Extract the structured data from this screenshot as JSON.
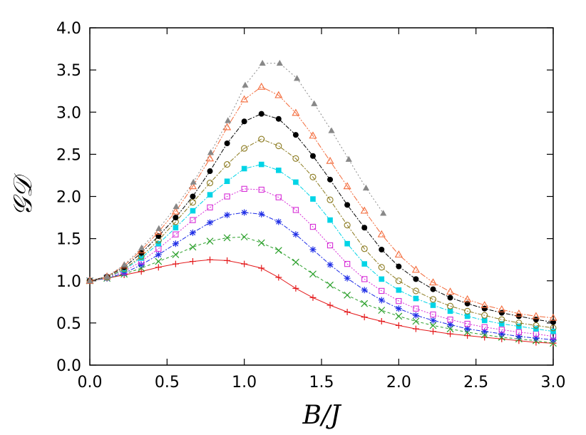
{
  "chart_data": {
    "type": "line",
    "xlabel": "B/J",
    "ylabel": "𝒢𝒟",
    "xlim": [
      0,
      3
    ],
    "ylim": [
      0,
      4
    ],
    "xticks": [
      "0.0",
      "0.5",
      "1.0",
      "1.5",
      "2.0",
      "2.5",
      "3.0"
    ],
    "yticks": [
      "0.0",
      "0.5",
      "1.0",
      "1.5",
      "2.0",
      "2.5",
      "3.0",
      "3.5",
      "4.0"
    ],
    "grid": false,
    "legend": "none",
    "series": [
      {
        "color": "#e41a1c",
        "marker": "plus",
        "dash": "none",
        "x_end": 3.0,
        "values": [
          1.0,
          1.03,
          1.07,
          1.11,
          1.16,
          1.2,
          1.23,
          1.25,
          1.24,
          1.2,
          1.15,
          1.04,
          0.91,
          0.8,
          0.71,
          0.63,
          0.57,
          0.52,
          0.47,
          0.43,
          0.4,
          0.37,
          0.35,
          0.33,
          0.31,
          0.29,
          0.27,
          0.26
        ]
      },
      {
        "color": "#2ca02c",
        "marker": "x",
        "dash": "4 3",
        "x_end": 3.0,
        "values": [
          1.0,
          1.03,
          1.08,
          1.15,
          1.23,
          1.31,
          1.4,
          1.47,
          1.51,
          1.52,
          1.45,
          1.36,
          1.22,
          1.08,
          0.95,
          0.83,
          0.73,
          0.65,
          0.58,
          0.52,
          0.47,
          0.43,
          0.39,
          0.36,
          0.33,
          0.31,
          0.29,
          0.26
        ]
      },
      {
        "color": "#1f2ee6",
        "marker": "star",
        "dash": "6 2 2 2",
        "x_end": 3.0,
        "values": [
          1.0,
          1.03,
          1.09,
          1.19,
          1.31,
          1.44,
          1.57,
          1.69,
          1.78,
          1.81,
          1.79,
          1.7,
          1.55,
          1.37,
          1.19,
          1.03,
          0.89,
          0.77,
          0.67,
          0.59,
          0.53,
          0.48,
          0.43,
          0.4,
          0.37,
          0.34,
          0.32,
          0.3
        ]
      },
      {
        "color": "#d72fd7",
        "marker": "square-open",
        "dash": "2 2",
        "x_end": 3.0,
        "values": [
          1.0,
          1.04,
          1.11,
          1.23,
          1.38,
          1.55,
          1.72,
          1.87,
          2.0,
          2.09,
          2.08,
          1.99,
          1.84,
          1.64,
          1.42,
          1.2,
          1.02,
          0.88,
          0.76,
          0.67,
          0.6,
          0.54,
          0.49,
          0.45,
          0.42,
          0.39,
          0.37,
          0.34
        ]
      },
      {
        "color": "#00d4e6",
        "marker": "square-filled",
        "dash": "6 2 2 2",
        "x_end": 3.0,
        "values": [
          1.0,
          1.04,
          1.13,
          1.27,
          1.44,
          1.63,
          1.83,
          2.02,
          2.18,
          2.33,
          2.38,
          2.31,
          2.17,
          1.97,
          1.72,
          1.44,
          1.2,
          1.02,
          0.89,
          0.79,
          0.71,
          0.64,
          0.58,
          0.53,
          0.49,
          0.46,
          0.43,
          0.4
        ]
      },
      {
        "color": "#8b7a1f",
        "marker": "circle-open",
        "dash": "6 2 2 2",
        "x_end": 3.0,
        "values": [
          1.0,
          1.04,
          1.14,
          1.29,
          1.48,
          1.7,
          1.93,
          2.16,
          2.38,
          2.57,
          2.68,
          2.6,
          2.45,
          2.23,
          1.96,
          1.66,
          1.38,
          1.16,
          1.0,
          0.88,
          0.78,
          0.7,
          0.64,
          0.59,
          0.54,
          0.5,
          0.47,
          0.44
        ]
      },
      {
        "color": "#000000",
        "marker": "circle-filled",
        "dash": "6 2 2 2",
        "x_end": 3.0,
        "values": [
          1.0,
          1.05,
          1.16,
          1.33,
          1.53,
          1.75,
          2.0,
          2.3,
          2.63,
          2.89,
          2.98,
          2.92,
          2.73,
          2.48,
          2.2,
          1.9,
          1.63,
          1.37,
          1.17,
          1.02,
          0.9,
          0.8,
          0.73,
          0.67,
          0.62,
          0.58,
          0.54,
          0.51
        ]
      },
      {
        "color": "#f36b3b",
        "marker": "triangle-open",
        "dash": "8 2 2 2 2 2",
        "x_end": 3.0,
        "values": [
          1.0,
          1.05,
          1.18,
          1.36,
          1.58,
          1.82,
          2.12,
          2.45,
          2.82,
          3.15,
          3.3,
          3.2,
          2.99,
          2.72,
          2.42,
          2.12,
          1.83,
          1.55,
          1.31,
          1.13,
          0.98,
          0.87,
          0.78,
          0.71,
          0.66,
          0.61,
          0.58,
          0.56
        ]
      },
      {
        "color": "#888888",
        "marker": "triangle-filled",
        "dash": "2 3",
        "x_end": 1.9,
        "values": [
          1.0,
          1.05,
          1.19,
          1.39,
          1.62,
          1.88,
          2.17,
          2.52,
          2.9,
          3.32,
          3.58,
          3.58,
          3.4,
          3.1,
          2.78,
          2.44,
          2.1,
          1.8
        ]
      }
    ]
  }
}
